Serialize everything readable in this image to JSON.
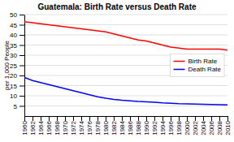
{
  "chart_data": {
    "type": "line",
    "title": "Guatemala: Birth Rate versus Death Rate",
    "ylabel": "per 1,000 People",
    "x": [
      1960,
      1962,
      1964,
      1966,
      1968,
      1970,
      1972,
      1974,
      1976,
      1978,
      1980,
      1982,
      1984,
      1986,
      1988,
      1990,
      1992,
      1994,
      1996,
      1998,
      2000,
      2002,
      2004,
      2006,
      2008,
      2010
    ],
    "series": [
      {
        "name": "Birth Rate",
        "color": "#ff0000",
        "values": [
          46.5,
          46.0,
          45.5,
          45.0,
          44.5,
          44.0,
          43.5,
          43.0,
          42.5,
          42.0,
          41.5,
          40.5,
          39.5,
          38.5,
          37.5,
          37.0,
          36.0,
          35.0,
          34.0,
          33.5,
          33.0,
          33.0,
          33.0,
          33.0,
          33.0,
          32.5
        ]
      },
      {
        "name": "Death Rate",
        "color": "#0000ff",
        "values": [
          19.0,
          17.5,
          16.5,
          15.5,
          14.5,
          13.5,
          12.5,
          11.5,
          10.5,
          9.5,
          8.8,
          8.2,
          7.8,
          7.5,
          7.2,
          7.0,
          6.8,
          6.5,
          6.3,
          6.1,
          6.0,
          5.9,
          5.8,
          5.7,
          5.6,
          5.5
        ]
      }
    ],
    "xlim": [
      1960,
      2010
    ],
    "xticks": [
      1960,
      1962,
      1964,
      1966,
      1968,
      1970,
      1972,
      1974,
      1976,
      1978,
      1980,
      1982,
      1984,
      1986,
      1988,
      1990,
      1992,
      1994,
      1996,
      1998,
      2000,
      2002,
      2004,
      2006,
      2008,
      2010
    ],
    "ylim": [
      0,
      50
    ],
    "yticks": [
      5,
      10,
      15,
      20,
      25,
      30,
      35,
      40,
      45,
      50
    ],
    "grid": true,
    "legend": "right"
  }
}
